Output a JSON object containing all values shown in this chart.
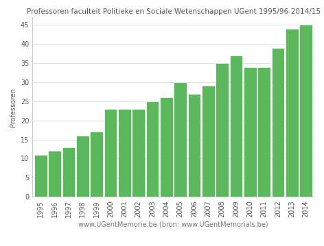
{
  "title": "Professoren faculteit Politieke en Sociale Wetenschappen UGent 1995/96-2014/15",
  "xlabel": "www.UGentMemorie.be (bron: www.UGentMemorials.be)",
  "ylabel": "Professoren",
  "categories": [
    "1995",
    "1996",
    "1997",
    "1998",
    "1999",
    "2000",
    "2001",
    "2002",
    "2003",
    "2004",
    "2005",
    "2006",
    "2007",
    "2008",
    "2009",
    "2010",
    "2011",
    "2012",
    "2013",
    "2014"
  ],
  "values": [
    11,
    12,
    13,
    16,
    17,
    23,
    23,
    23,
    25,
    26,
    30,
    27,
    29,
    35,
    37,
    34,
    34,
    39,
    44,
    45
  ],
  "bar_color": "#5cb85c",
  "ylim": [
    0,
    47
  ],
  "yticks": [
    0,
    5,
    10,
    15,
    20,
    25,
    30,
    35,
    40,
    45
  ],
  "title_fontsize": 7.5,
  "xlabel_fontsize": 7,
  "ylabel_fontsize": 7,
  "tick_fontsize": 7,
  "background_color": "#ffffff"
}
